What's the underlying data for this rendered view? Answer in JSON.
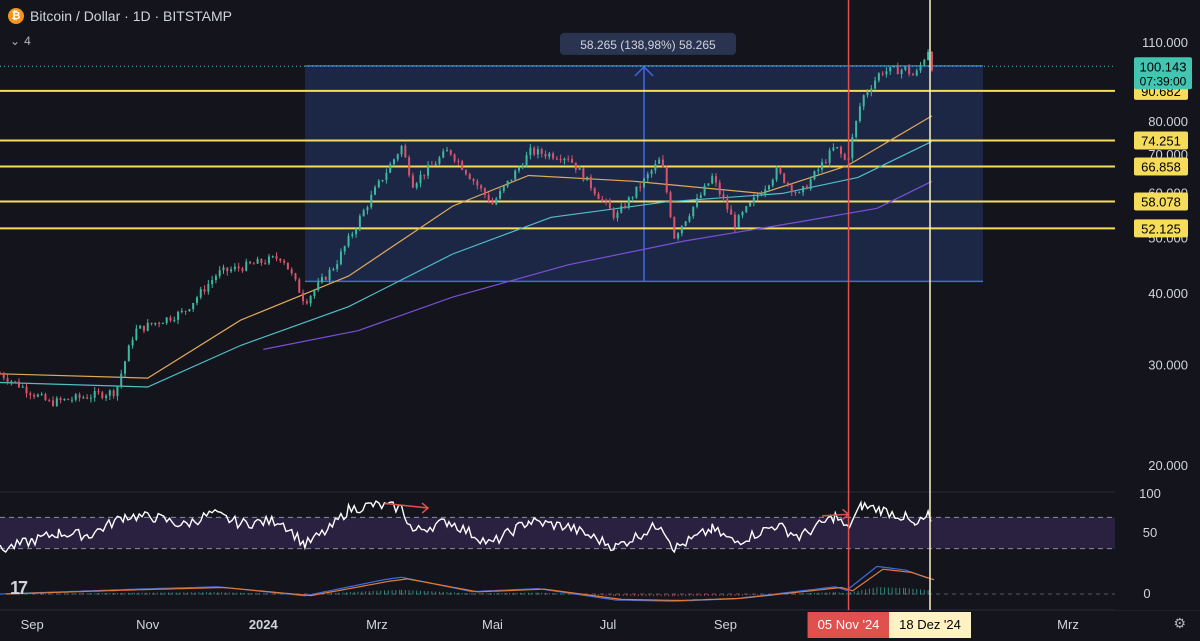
{
  "header": {
    "symbol_icon": "bitcoin-icon",
    "title": "Bitcoin / Dollar · 1D · BITSTAMP",
    "indicators_toggle": "4"
  },
  "colors": {
    "background": "#13141c",
    "range_box": "#1e2a4d",
    "range_line": "#3d6be0",
    "support_lines": "#f5dc5b",
    "marker_nov": "#e0504f",
    "marker_dec": "#fff2c2",
    "ma_orange": "#e0a85a",
    "ma_teal": "#4fbfc8",
    "ma_purple": "#7b4fd6",
    "rsi_band": "#2a2140",
    "price_label": "#43c5b2"
  },
  "chart_data": [
    {
      "type": "candlestick",
      "title": "Bitcoin / Dollar · 1D · BITSTAMP",
      "x_range": [
        "2023-08-15",
        "2025-04-01"
      ],
      "y_scale": "log",
      "y_range": [
        16500,
        125000
      ],
      "y_ticks": [
        {
          "value": 110000,
          "label": "110.000"
        },
        {
          "value": 80000,
          "label": "80.000"
        },
        {
          "value": 70000,
          "label": "70.000"
        },
        {
          "value": 60000,
          "label": "60.000"
        },
        {
          "value": 50000,
          "label": "50.000"
        },
        {
          "value": 40000,
          "label": "40.000"
        },
        {
          "value": 30000,
          "label": "30.000"
        },
        {
          "value": 20000,
          "label": "20.000"
        }
      ],
      "x_ticks": [
        {
          "date": "2023-09-01",
          "label": "Sep"
        },
        {
          "date": "2023-11-01",
          "label": "Nov"
        },
        {
          "date": "2024-01-01",
          "label": "2024"
        },
        {
          "date": "2024-03-01",
          "label": "Mrz"
        },
        {
          "date": "2024-05-01",
          "label": "Mai"
        },
        {
          "date": "2024-07-01",
          "label": "Jul"
        },
        {
          "date": "2024-09-01",
          "label": "Sep"
        },
        {
          "date": "2025-03-01",
          "label": "Mrz"
        }
      ],
      "price_path": [
        [
          "2023-08-15",
          29000
        ],
        [
          "2023-09-10",
          25800
        ],
        [
          "2023-10-15",
          27000
        ],
        [
          "2023-10-25",
          34500
        ],
        [
          "2023-11-20",
          37200
        ],
        [
          "2023-12-08",
          43500
        ],
        [
          "2024-01-11",
          46500
        ],
        [
          "2024-01-23",
          38800
        ],
        [
          "2024-02-08",
          45000
        ],
        [
          "2024-02-28",
          60000
        ],
        [
          "2024-03-14",
          72500
        ],
        [
          "2024-03-20",
          62500
        ],
        [
          "2024-04-08",
          71500
        ],
        [
          "2024-05-01",
          57500
        ],
        [
          "2024-05-21",
          71000
        ],
        [
          "2024-06-10",
          69500
        ],
        [
          "2024-07-05",
          54500
        ],
        [
          "2024-07-29",
          69000
        ],
        [
          "2024-08-05",
          50500
        ],
        [
          "2024-08-25",
          64000
        ],
        [
          "2024-09-06",
          53000
        ],
        [
          "2024-09-28",
          65500
        ],
        [
          "2024-10-10",
          59500
        ],
        [
          "2024-10-29",
          72500
        ],
        [
          "2024-11-04",
          67800
        ],
        [
          "2024-11-12",
          88000
        ],
        [
          "2024-11-22",
          98000
        ],
        [
          "2024-12-05",
          99000
        ],
        [
          "2024-12-10",
          96000
        ],
        [
          "2024-12-17",
          107000
        ],
        [
          "2024-12-19",
          100143
        ]
      ],
      "current_price": {
        "label": "100.143",
        "countdown": "07:39:00",
        "value": 100143
      },
      "support_levels": [
        {
          "value": 90682,
          "label": "90.682"
        },
        {
          "value": 74251,
          "label": "74.251"
        },
        {
          "value": 66858,
          "label": "66.858"
        },
        {
          "value": 58078,
          "label": "58.078"
        },
        {
          "value": 52125,
          "label": "52.125"
        }
      ],
      "range_box": {
        "from": "2024-01-23",
        "to": "2025-01-15",
        "low": 42100,
        "high": 100300,
        "measurement_label": "58.265 (138,98%) 58.265"
      },
      "moving_averages": [
        {
          "color": "orange",
          "points": [
            [
              "2023-08-15",
              29000
            ],
            [
              "2023-11-01",
              28500
            ],
            [
              "2023-12-20",
              36000
            ],
            [
              "2024-02-15",
              43000
            ],
            [
              "2024-04-10",
              57000
            ],
            [
              "2024-05-20",
              64500
            ],
            [
              "2024-07-15",
              63000
            ],
            [
              "2024-09-20",
              60000
            ],
            [
              "2024-11-04",
              67000
            ],
            [
              "2024-12-19",
              82000
            ]
          ]
        },
        {
          "color": "teal",
          "points": [
            [
              "2023-08-15",
              28000
            ],
            [
              "2023-11-01",
              27500
            ],
            [
              "2023-12-20",
              32500
            ],
            [
              "2024-02-15",
              38000
            ],
            [
              "2024-04-10",
              47000
            ],
            [
              "2024-06-01",
              54500
            ],
            [
              "2024-08-01",
              58000
            ],
            [
              "2024-10-01",
              60000
            ],
            [
              "2024-11-10",
              64000
            ],
            [
              "2024-12-19",
              74000
            ]
          ]
        },
        {
          "color": "purple",
          "points": [
            [
              "2024-01-01",
              32000
            ],
            [
              "2024-02-20",
              34500
            ],
            [
              "2024-04-10",
              39500
            ],
            [
              "2024-06-10",
              45000
            ],
            [
              "2024-08-10",
              49500
            ],
            [
              "2024-10-10",
              53500
            ],
            [
              "2024-11-20",
              56500
            ],
            [
              "2024-12-19",
              63000
            ]
          ]
        }
      ],
      "event_markers": [
        {
          "date": "2024-11-05",
          "label": "05 Nov '24",
          "color": "red"
        },
        {
          "date": "2024-12-18",
          "label": "18 Dez '24",
          "color": "cream"
        }
      ]
    },
    {
      "type": "line",
      "title": "",
      "y_range": [
        0,
        100
      ],
      "y_ticks": [
        {
          "value": 100,
          "label": "100"
        },
        {
          "value": 50,
          "label": "50"
        }
      ],
      "band": [
        30,
        70
      ],
      "rsi_points": [
        [
          "2023-08-15",
          28
        ],
        [
          "2023-09-01",
          40
        ],
        [
          "2023-09-15",
          50
        ],
        [
          "2023-10-01",
          47
        ],
        [
          "2023-10-20",
          72
        ],
        [
          "2023-11-05",
          70
        ],
        [
          "2023-11-20",
          60
        ],
        [
          "2023-12-05",
          75
        ],
        [
          "2023-12-20",
          62
        ],
        [
          "2024-01-10",
          66
        ],
        [
          "2024-01-23",
          35
        ],
        [
          "2024-02-05",
          55
        ],
        [
          "2024-02-15",
          80
        ],
        [
          "2024-02-28",
          86
        ],
        [
          "2024-03-14",
          82
        ],
        [
          "2024-03-20",
          52
        ],
        [
          "2024-04-08",
          65
        ],
        [
          "2024-04-30",
          36
        ],
        [
          "2024-05-20",
          65
        ],
        [
          "2024-06-10",
          58
        ],
        [
          "2024-07-05",
          32
        ],
        [
          "2024-07-29",
          62
        ],
        [
          "2024-08-05",
          30
        ],
        [
          "2024-08-25",
          55
        ],
        [
          "2024-09-06",
          38
        ],
        [
          "2024-09-28",
          60
        ],
        [
          "2024-10-10",
          45
        ],
        [
          "2024-10-29",
          72
        ],
        [
          "2024-11-04",
          55
        ],
        [
          "2024-11-12",
          85
        ],
        [
          "2024-11-22",
          80
        ],
        [
          "2024-12-05",
          70
        ],
        [
          "2024-12-10",
          58
        ],
        [
          "2024-12-17",
          72
        ],
        [
          "2024-12-19",
          58
        ]
      ],
      "divergence_arrows": [
        {
          "from": [
            "2024-03-05",
            88
          ],
          "to": [
            "2024-03-28",
            82
          ]
        },
        {
          "from": [
            "2024-10-22",
            72
          ],
          "to": [
            "2024-11-05",
            74
          ]
        }
      ]
    },
    {
      "type": "line",
      "title": "",
      "y_ticks": [
        {
          "value": 0,
          "label": "0"
        }
      ],
      "macd_points": [
        [
          "2023-08-15",
          0
        ],
        [
          "2023-10-25",
          0.8
        ],
        [
          "2023-12-08",
          1.2
        ],
        [
          "2024-01-23",
          -0.3
        ],
        [
          "2024-03-05",
          2.4
        ],
        [
          "2024-03-14",
          2.8
        ],
        [
          "2024-04-20",
          0.4
        ],
        [
          "2024-05-25",
          0.9
        ],
        [
          "2024-07-05",
          -1.0
        ],
        [
          "2024-08-05",
          -1.2
        ],
        [
          "2024-09-06",
          -0.8
        ],
        [
          "2024-10-29",
          1.2
        ],
        [
          "2024-11-04",
          0.6
        ],
        [
          "2024-11-20",
          4.6
        ],
        [
          "2024-12-05",
          4.0
        ],
        [
          "2024-12-19",
          2.4
        ]
      ]
    }
  ]
}
